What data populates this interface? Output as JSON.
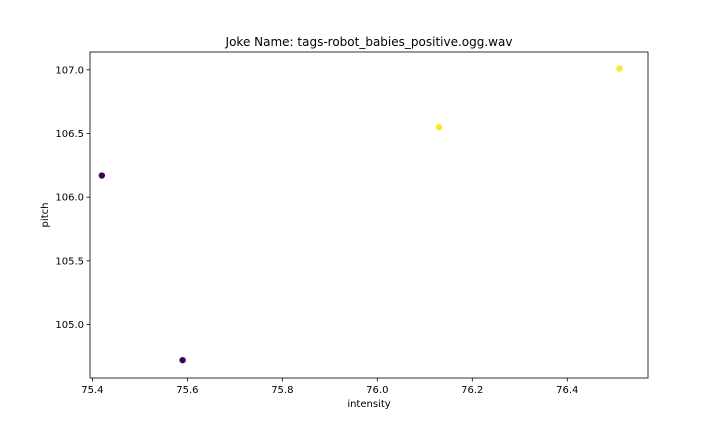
{
  "chart_data": {
    "type": "scatter",
    "title": "Joke Name: tags-robot_babies_positive.ogg.wav",
    "xlabel": "intensity",
    "ylabel": "pitch",
    "xlim": [
      75.395,
      76.57
    ],
    "ylim": [
      104.58,
      107.14
    ],
    "xticks": [
      75.4,
      75.6,
      75.8,
      76.0,
      76.2,
      76.4
    ],
    "xtick_labels": [
      "75.4",
      "75.6",
      "75.8",
      "76.0",
      "76.2",
      "76.4"
    ],
    "yticks": [
      105.0,
      105.5,
      106.0,
      106.5,
      107.0
    ],
    "ytick_labels": [
      "105.0",
      "105.5",
      "106.0",
      "106.5",
      "107.0"
    ],
    "grid": false,
    "points": [
      {
        "x": 75.42,
        "y": 106.17,
        "color": "#440154"
      },
      {
        "x": 75.59,
        "y": 104.72,
        "color": "#440154"
      },
      {
        "x": 76.13,
        "y": 106.55,
        "color": "#fde725"
      },
      {
        "x": 76.51,
        "y": 107.01,
        "color": "#fde725"
      }
    ]
  }
}
